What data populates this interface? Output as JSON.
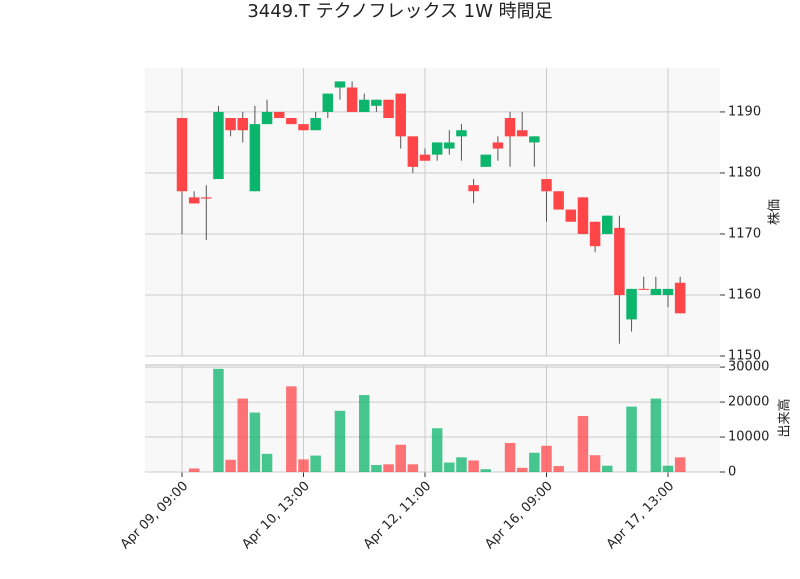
{
  "chart_data": {
    "type": "candlestick",
    "title": "3449.T テクノフレックス 1W 時間足",
    "categories": [
      "Apr 09, 09:00",
      null,
      null,
      null,
      null,
      null,
      null,
      null,
      null,
      null,
      "Apr 10, 13:00",
      null,
      null,
      null,
      null,
      null,
      null,
      null,
      null,
      null,
      "Apr 12, 11:00",
      null,
      null,
      null,
      null,
      null,
      null,
      null,
      null,
      null,
      "Apr 16, 09:00",
      null,
      null,
      null,
      null,
      null,
      null,
      null,
      null,
      null,
      "Apr 17, 13:00",
      null
    ],
    "open": [
      1189,
      1176,
      1176,
      1179,
      1189,
      1189,
      1177,
      1188,
      1190,
      1189,
      1188,
      1187,
      1190,
      1194,
      1194,
      1190,
      1191,
      1192,
      1193,
      1186,
      1183,
      1183,
      1184,
      1186,
      1178,
      1181,
      1185,
      1189,
      1187,
      1185,
      1179,
      1177,
      1174,
      1176,
      1172,
      1170,
      1171,
      1156,
      1161,
      1160,
      1160,
      1162
    ],
    "high": [
      1189,
      1177,
      1178,
      1191,
      1189,
      1190,
      1191,
      1192,
      1190,
      1189,
      1188,
      1190,
      1193,
      1195,
      1195,
      1193,
      1192,
      1192,
      1193,
      1186,
      1184,
      1185,
      1187,
      1188,
      1179,
      1183,
      1186,
      1190,
      1190,
      1186,
      1179,
      1177,
      1174,
      1176,
      1172,
      1173,
      1173,
      1161,
      1163,
      1163,
      1161,
      1163
    ],
    "low": [
      1170,
      1175,
      1169,
      1179,
      1186,
      1185,
      1177,
      1188,
      1189,
      1188,
      1187,
      1187,
      1189,
      1192,
      1190,
      1190,
      1190,
      1189,
      1184,
      1180,
      1182,
      1182,
      1183,
      1182,
      1175,
      1181,
      1182,
      1181,
      1186,
      1181,
      1172,
      1174,
      1172,
      1170,
      1167,
      1170,
      1152,
      1154,
      1161,
      1160,
      1158,
      1157
    ],
    "close": [
      1177,
      1175,
      1175.8,
      1190,
      1187,
      1187,
      1188,
      1190,
      1189,
      1188,
      1187,
      1189,
      1193,
      1195,
      1190,
      1192,
      1192,
      1189,
      1186,
      1181,
      1182,
      1185,
      1185,
      1187,
      1177,
      1183,
      1184,
      1186,
      1186,
      1186,
      1177,
      1174,
      1172,
      1170,
      1168,
      1173,
      1160,
      1161,
      1160.9,
      1161,
      1161,
      1157
    ],
    "volume": [
      0,
      1000,
      0,
      29500,
      3500,
      21000,
      17000,
      5200,
      0,
      24500,
      3600,
      4700,
      0,
      17500,
      0,
      22000,
      2000,
      2200,
      7800,
      2200,
      0,
      12500,
      2700,
      4200,
      3300,
      800,
      0,
      8300,
      1200,
      5500,
      7500,
      1700,
      0,
      16000,
      4800,
      1800,
      0,
      18700,
      0,
      21000,
      1800,
      4200
    ],
    "up_color": "#0bb56b",
    "down_color": "#ff4548",
    "ylabel": "株価",
    "ylim": [
      1150,
      1197.2
    ],
    "yticks": [
      1150,
      1160,
      1170,
      1180,
      1190
    ],
    "volume_label": "出来高",
    "volume_lim": [
      0,
      30600
    ],
    "volume_ticks": [
      0,
      10000,
      20000,
      30000
    ],
    "grid": true
  }
}
